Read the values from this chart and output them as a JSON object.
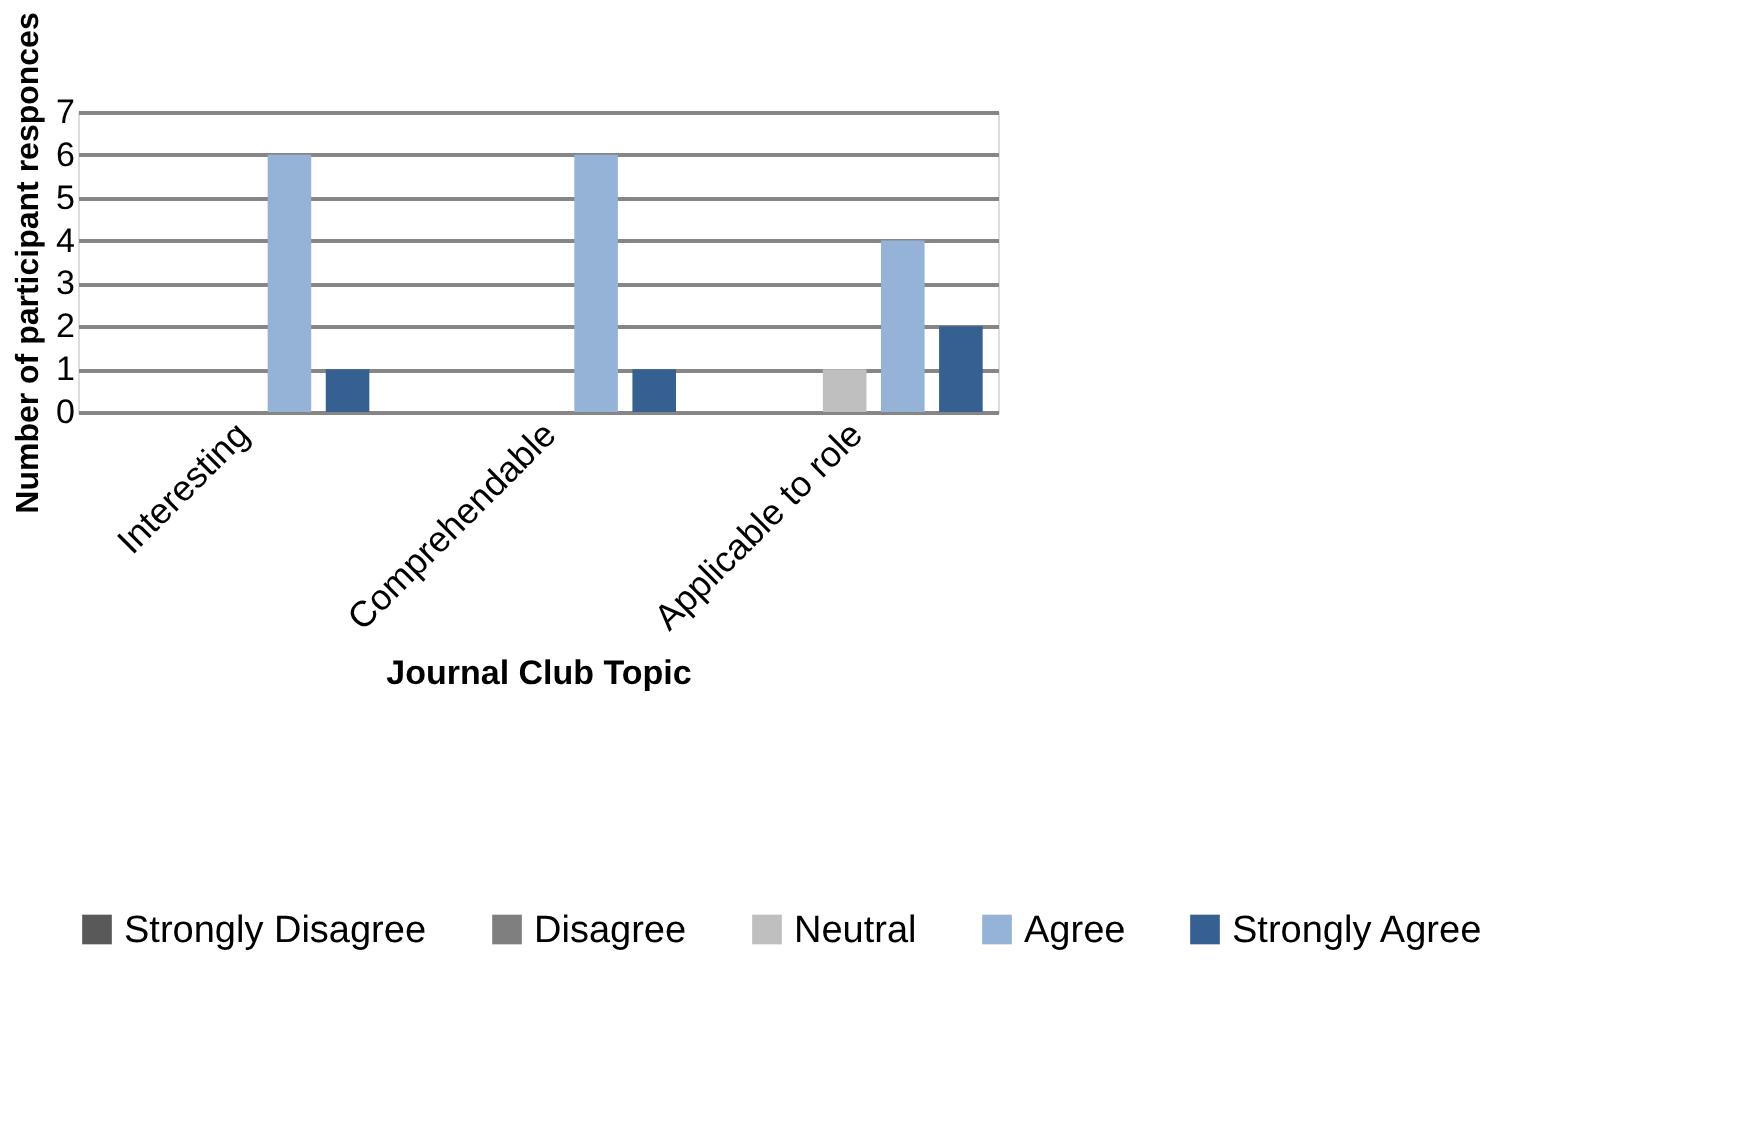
{
  "chart_data": {
    "type": "bar",
    "xlabel": "Journal Club Topic",
    "ylabel": "Number of participant responces",
    "categories": [
      "Interesting",
      "Comprehendable",
      "Applicable to role"
    ],
    "series": [
      {
        "name": "Strongly Disagree",
        "color": "#595959",
        "values": [
          0,
          0,
          0
        ]
      },
      {
        "name": "Disagree",
        "color": "#7f7f7f",
        "values": [
          0,
          0,
          0
        ]
      },
      {
        "name": "Neutral",
        "color": "#bfbfbf",
        "values": [
          0,
          0,
          1
        ]
      },
      {
        "name": "Agree",
        "color": "#95b3d7",
        "values": [
          6,
          6,
          4
        ]
      },
      {
        "name": "Strongly Agree",
        "color": "#366092",
        "values": [
          1,
          1,
          2
        ]
      }
    ],
    "ylim": [
      0,
      7
    ],
    "yticks": [
      0,
      1,
      2,
      3,
      4,
      5,
      6,
      7
    ],
    "grid": "y",
    "legend": "bottom"
  }
}
